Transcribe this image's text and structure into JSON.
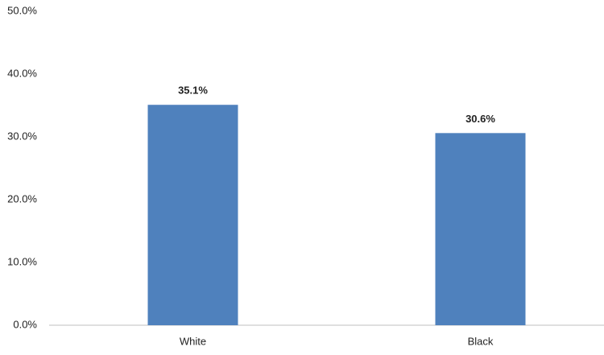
{
  "chart_data": {
    "type": "bar",
    "categories": [
      "White",
      "Black"
    ],
    "values": [
      35.1,
      30.6
    ],
    "value_labels": [
      "35.1%",
      "30.6%"
    ],
    "color": "#4f81bd",
    "ylim": [
      0,
      50
    ],
    "yticks": [
      {
        "value": 0,
        "label": "0.0%"
      },
      {
        "value": 10,
        "label": "10.0%"
      },
      {
        "value": 20,
        "label": "20.0%"
      },
      {
        "value": 30,
        "label": "30.0%"
      },
      {
        "value": 40,
        "label": "40.0%"
      },
      {
        "value": 50,
        "label": "50.0%"
      }
    ],
    "grid": false
  }
}
